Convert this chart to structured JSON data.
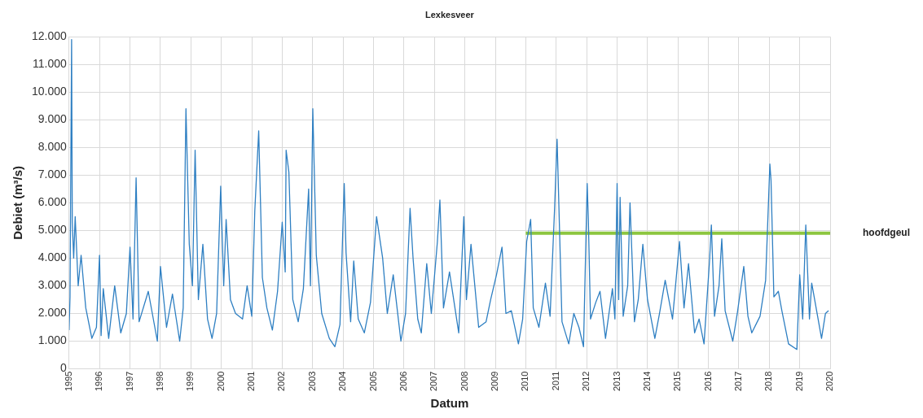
{
  "chart_data": {
    "type": "line",
    "title": "Lexkesveer",
    "xlabel": "Datum",
    "ylabel": "Debiet (m³/s)",
    "grid": true,
    "legend": false,
    "marker": "none",
    "line_style": "solid",
    "xlim": [
      "1995-01-01",
      "2020-01-01"
    ],
    "xticks": [
      "1995",
      "1996",
      "1997",
      "1998",
      "1999",
      "2000",
      "2001",
      "2002",
      "2003",
      "2004",
      "2005",
      "2006",
      "2007",
      "2008",
      "2009",
      "2010",
      "2011",
      "2012",
      "2013",
      "2014",
      "2015",
      "2016",
      "2017",
      "2018",
      "2019",
      "2020"
    ],
    "ylim": [
      0,
      12000
    ],
    "yticks": [
      0,
      {
        "value": 1000,
        "label": "1.000"
      },
      {
        "value": 2000,
        "label": "2.000"
      },
      {
        "value": 3000,
        "label": "3.000"
      },
      {
        "value": 4000,
        "label": "4.000"
      },
      {
        "value": 5000,
        "label": "5.000"
      },
      {
        "value": 6000,
        "label": "6.000"
      },
      {
        "value": 7000,
        "label": "7.000"
      },
      {
        "value": 8000,
        "label": "8.000"
      },
      {
        "value": 9000,
        "label": "9.000"
      },
      {
        "value": 10000,
        "label": "10.000"
      },
      {
        "value": 11000,
        "label": "11.000"
      },
      {
        "value": 12000,
        "label": "12.000"
      }
    ],
    "series": [
      {
        "color": "#2e7fc2",
        "x": [
          "1995-01-01",
          "1995-01-12",
          "1995-01-31",
          "1995-02-08",
          "1995-02-25",
          "1995-03-15",
          "1995-04-20",
          "1995-05-25",
          "1995-07-20",
          "1995-10-01",
          "1995-11-25",
          "1996-01-01",
          "1996-01-20",
          "1996-02-15",
          "1996-04-20",
          "1996-07-01",
          "1996-09-12",
          "1996-11-18",
          "1997-01-01",
          "1997-02-06",
          "1997-03-15",
          "1997-04-20",
          "1997-08-08",
          "1997-11-25",
          "1998-01-01",
          "1998-03-15",
          "1998-05-25",
          "1998-08-20",
          "1998-10-01",
          "1998-11-03",
          "1998-12-13",
          "1999-01-20",
          "1999-02-21",
          "1999-04-01",
          "1999-05-25",
          "1999-07-20",
          "1999-09-12",
          "1999-11-06",
          "1999-12-25",
          "2000-01-30",
          "2000-02-28",
          "2000-04-20",
          "2000-06-20",
          "2000-09-12",
          "2000-11-06",
          "2001-01-01",
          "2001-02-06",
          "2001-03-25",
          "2001-05-08",
          "2001-07-01",
          "2001-09-05",
          "2001-11-06",
          "2002-01-01",
          "2002-02-06",
          "2002-02-17",
          "2002-03-22",
          "2002-05-08",
          "2002-07-12",
          "2002-09-12",
          "2002-11-14",
          "2002-12-06",
          "2003-01-03",
          "2003-02-14",
          "2003-04-20",
          "2003-07-20",
          "2003-09-25",
          "2003-11-25",
          "2004-01-15",
          "2004-02-06",
          "2004-04-01",
          "2004-05-08",
          "2004-07-01",
          "2004-09-12",
          "2004-11-25",
          "2005-02-06",
          "2005-04-20",
          "2005-06-15",
          "2005-08-25",
          "2005-11-25",
          "2006-01-20",
          "2006-03-15",
          "2006-04-20",
          "2006-06-15",
          "2006-07-28",
          "2006-10-01",
          "2006-11-25",
          "2007-02-06",
          "2007-03-08",
          "2007-04-20",
          "2007-07-01",
          "2007-10-20",
          "2007-12-20",
          "2008-01-20",
          "2008-03-15",
          "2008-06-15",
          "2008-09-12",
          "2008-11-06",
          "2009-01-15",
          "2009-03-22",
          "2009-05-08",
          "2009-07-12",
          "2009-10-05",
          "2009-11-25",
          "2010-01-12",
          "2010-03-01",
          "2010-04-01",
          "2010-06-08",
          "2010-08-25",
          "2010-10-20",
          "2010-12-13",
          "2011-01-12",
          "2011-03-12",
          "2011-06-01",
          "2011-08-01",
          "2011-10-01",
          "2011-11-25",
          "2012-01-08",
          "2012-01-22",
          "2012-02-17",
          "2012-04-20",
          "2012-06-10",
          "2012-08-15",
          "2012-11-06",
          "2012-12-06",
          "2013-01-01",
          "2013-01-20",
          "2013-02-06",
          "2013-03-15",
          "2013-05-08",
          "2013-06-05",
          "2013-07-28",
          "2013-09-12",
          "2013-11-06",
          "2014-01-01",
          "2014-03-30",
          "2014-05-25",
          "2014-08-01",
          "2014-10-28",
          "2015-01-20",
          "2015-03-15",
          "2015-05-08",
          "2015-07-20",
          "2015-09-12",
          "2015-11-10",
          "2016-01-15",
          "2016-02-06",
          "2016-03-15",
          "2016-05-08",
          "2016-06-10",
          "2016-07-20",
          "2016-10-20",
          "2016-12-13",
          "2017-03-01",
          "2017-04-20",
          "2017-06-05",
          "2017-09-12",
          "2017-11-18",
          "2018-01-08",
          "2018-01-22",
          "2018-02-25",
          "2018-04-20",
          "2018-06-01",
          "2018-08-20",
          "2018-11-28",
          "2019-01-01",
          "2019-02-06",
          "2019-03-15",
          "2019-04-28",
          "2019-05-25",
          "2019-09-20",
          "2019-11-06",
          "2019-12-13"
        ],
        "values": [
          1400,
          2600,
          11900,
          5300,
          4000,
          5500,
          3000,
          4100,
          2200,
          1100,
          1500,
          4100,
          1200,
          2900,
          1100,
          3000,
          1300,
          2000,
          4400,
          1800,
          6900,
          1700,
          2800,
          1000,
          3700,
          1500,
          2700,
          1000,
          2200,
          9400,
          4500,
          3000,
          7900,
          2500,
          4500,
          1800,
          1100,
          2000,
          6600,
          3000,
          5400,
          2500,
          2000,
          1800,
          3000,
          1900,
          5700,
          8600,
          3300,
          2200,
          1400,
          2800,
          5300,
          3500,
          7900,
          7100,
          2500,
          1700,
          2900,
          6500,
          3000,
          9400,
          4100,
          2000,
          1100,
          800,
          1600,
          6700,
          4200,
          1700,
          3900,
          1800,
          1300,
          2400,
          5500,
          4000,
          2000,
          3400,
          1000,
          2000,
          5800,
          4000,
          1800,
          1300,
          3800,
          2000,
          4600,
          6100,
          2200,
          3500,
          1300,
          5500,
          2500,
          4500,
          1500,
          1700,
          2500,
          3400,
          4400,
          2000,
          2100,
          900,
          1800,
          4600,
          5400,
          2200,
          1500,
          3100,
          1900,
          5800,
          8300,
          1700,
          900,
          2000,
          1500,
          800,
          6700,
          5400,
          1800,
          2400,
          2800,
          1100,
          2900,
          1800,
          6700,
          2500,
          6200,
          1900,
          3000,
          6000,
          1700,
          2500,
          4500,
          2500,
          1100,
          2000,
          3200,
          1800,
          4600,
          2200,
          3800,
          1300,
          1800,
          900,
          3900,
          5200,
          1900,
          3000,
          4700,
          2100,
          1000,
          2000,
          3700,
          1900,
          1300,
          1900,
          3200,
          7400,
          6800,
          2600,
          2800,
          2100,
          900,
          700,
          3400,
          1800,
          5200,
          1800,
          3100,
          1100,
          2000,
          2100
        ]
      },
      {
        "name": "hoofdgeul",
        "color": "#8cc63f",
        "x": [
          "2010-01-01",
          "2020-01-01"
        ],
        "values": [
          4900,
          4900
        ]
      }
    ]
  }
}
